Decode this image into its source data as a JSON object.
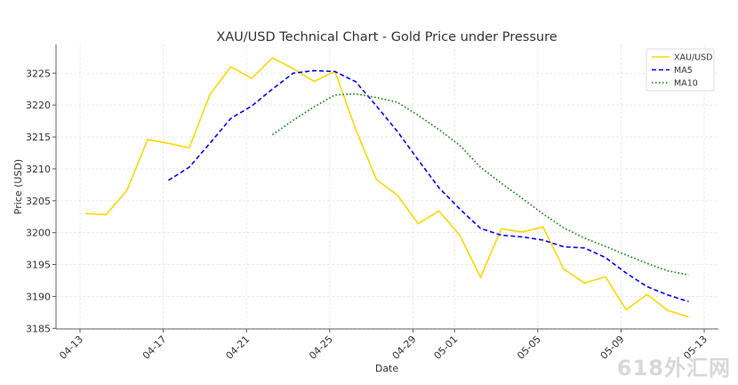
{
  "chart_data": {
    "type": "line",
    "title": "XAU/USD Technical Chart - Gold Price under Pressure",
    "xlabel": "Date",
    "ylabel": "Price (USD)",
    "x": [
      "04-13",
      "04-14",
      "04-15",
      "04-16",
      "04-17",
      "04-18",
      "04-19",
      "04-20",
      "04-21",
      "04-22",
      "04-23",
      "04-24",
      "04-25",
      "04-26",
      "04-27",
      "04-28",
      "04-29",
      "04-30",
      "05-01",
      "05-02",
      "05-03",
      "05-04",
      "05-05",
      "05-06",
      "05-07",
      "05-08",
      "05-09",
      "05-10",
      "05-11",
      "05-12"
    ],
    "xticks": [
      "04-13",
      "04-17",
      "04-21",
      "04-25",
      "04-29",
      "05-01",
      "05-05",
      "05-09",
      "05-13"
    ],
    "yticks": [
      3185,
      3190,
      3195,
      3200,
      3205,
      3210,
      3215,
      3220,
      3225
    ],
    "ylim": [
      3184.9,
      3229.5
    ],
    "grid": true,
    "legend": "top-right",
    "series": [
      {
        "name": "XAU/USD",
        "color": "#FFD700",
        "style": "solid",
        "values": [
          3203.0,
          3202.8,
          3206.6,
          3214.6,
          3214.0,
          3213.3,
          3221.7,
          3226.0,
          3224.2,
          3227.4,
          3225.7,
          3223.7,
          3225.3,
          3216.2,
          3208.3,
          3205.9,
          3201.4,
          3203.4,
          3199.6,
          3193.0,
          3200.6,
          3200.1,
          3200.9,
          3194.3,
          3192.1,
          3193.1,
          3187.9,
          3190.3,
          3187.8,
          3186.8
        ]
      },
      {
        "name": "MA5",
        "color": "#0000FF",
        "style": "dashed",
        "values": [
          null,
          null,
          null,
          null,
          3208.2,
          3210.26,
          3214.04,
          3217.92,
          3219.84,
          3222.52,
          3225.0,
          3225.4,
          3225.26,
          3223.66,
          3219.84,
          3215.88,
          3211.42,
          3207.04,
          3203.72,
          3200.66,
          3199.6,
          3199.34,
          3198.84,
          3197.78,
          3197.6,
          3196.1,
          3193.66,
          3191.54,
          3190.24,
          3189.18
        ]
      },
      {
        "name": "MA10",
        "color": "#008000",
        "style": "dotted",
        "values": [
          null,
          null,
          null,
          null,
          null,
          null,
          null,
          null,
          null,
          3215.36,
          3217.63,
          3219.72,
          3221.59,
          3221.75,
          3221.18,
          3220.44,
          3218.41,
          3216.15,
          3213.69,
          3210.25,
          3207.74,
          3205.38,
          3202.94,
          3200.75,
          3199.13,
          3197.85,
          3196.5,
          3195.19,
          3194.01,
          3193.39
        ]
      }
    ]
  },
  "watermark": "618外汇网"
}
